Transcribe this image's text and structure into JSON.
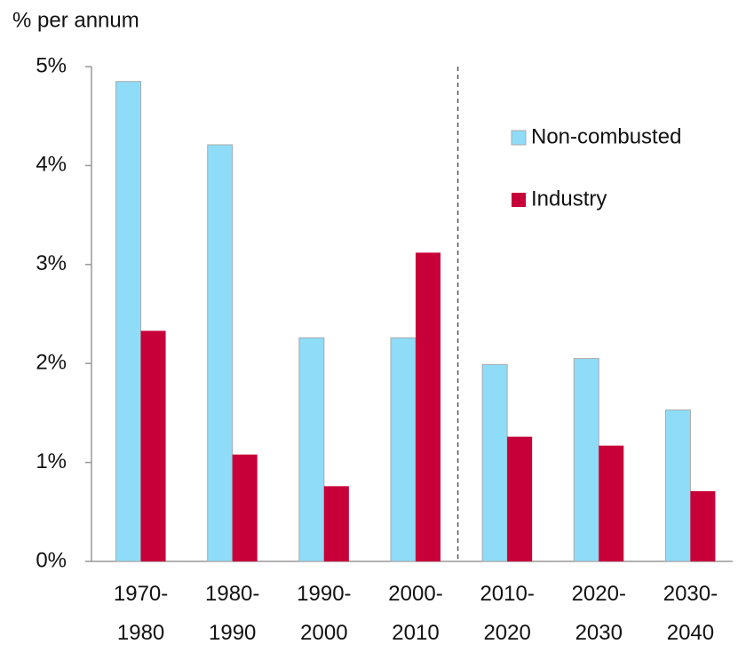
{
  "chart_data": {
    "type": "bar",
    "y_axis_label": "% per annum",
    "categories": [
      "1970-1980",
      "1980-1990",
      "1990-2000",
      "2000-2010",
      "2010-2020",
      "2020-2030",
      "2030-2040"
    ],
    "series": [
      {
        "name": "Non-combusted",
        "color": "#8edcf8",
        "values": [
          4.85,
          4.21,
          2.26,
          2.26,
          1.99,
          2.05,
          1.53
        ]
      },
      {
        "name": "Industry",
        "color": "#c8003a",
        "values": [
          2.33,
          1.08,
          0.76,
          3.12,
          1.26,
          1.17,
          0.71
        ]
      }
    ],
    "ylim": [
      0,
      5
    ],
    "yticks": [
      {
        "value": 0,
        "label": "0%"
      },
      {
        "value": 1,
        "label": "1%"
      },
      {
        "value": 2,
        "label": "2%"
      },
      {
        "value": 3,
        "label": "3%"
      },
      {
        "value": 4,
        "label": "4%"
      },
      {
        "value": 5,
        "label": "5%"
      }
    ],
    "legend": "right"
  }
}
